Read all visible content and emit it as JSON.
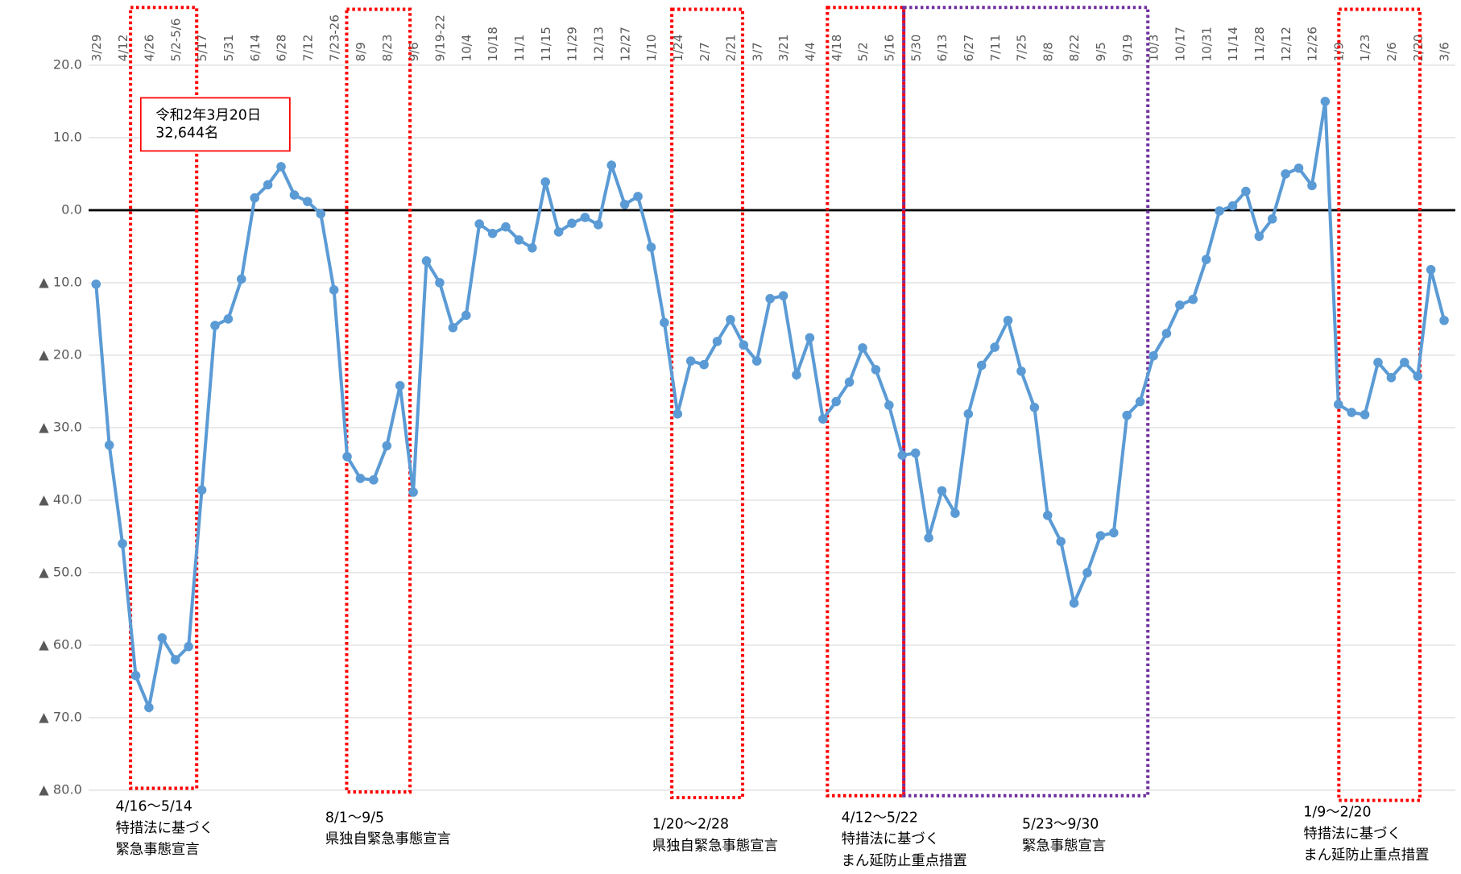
{
  "chart_data": {
    "type": "line",
    "categories": [
      "3/29",
      null,
      "4/12",
      null,
      "4/26",
      null,
      "5/2-5/6",
      null,
      "5/17",
      null,
      "5/31",
      null,
      "6/14",
      null,
      "6/28",
      null,
      "7/12",
      null,
      "7/23-26",
      null,
      "8/9",
      null,
      "8/23",
      null,
      "9/6",
      null,
      "9/19-22",
      null,
      "10/4",
      null,
      "10/18",
      null,
      "11/1",
      null,
      "11/15",
      null,
      "11/29",
      null,
      "12/13",
      null,
      "12/27",
      null,
      "1/10",
      null,
      "1/24",
      null,
      "2/7",
      null,
      "2/21",
      null,
      "3/7",
      null,
      "3/21",
      null,
      "4/4",
      null,
      "4/18",
      null,
      "5/2",
      null,
      "5/16",
      null,
      "5/30",
      null,
      "6/13",
      null,
      "6/27",
      null,
      "7/11",
      null,
      "7/25",
      null,
      "8/8",
      null,
      "8/22",
      null,
      "9/5",
      null,
      "9/19",
      null,
      "10/3",
      null,
      "10/17",
      null,
      "10/31",
      null,
      "11/14",
      null,
      "11/28",
      null,
      "12/12",
      null,
      "12/26",
      null,
      "1/9",
      null,
      "1/23",
      null,
      "2/6",
      null,
      "2/20",
      null,
      "3/6"
    ],
    "series": [
      {
        "color": "#5b9bd5",
        "values": [
          -10.2,
          -32.4,
          -46,
          -64.2,
          -68.6,
          -59,
          -62,
          -60.2,
          -38.6,
          -15.9,
          -15,
          -9.5,
          1.7,
          3.5,
          6,
          2.1,
          1.2,
          -0.5,
          -11,
          -34,
          -37,
          -37.2,
          -32.5,
          -24.2,
          -38.9,
          -7,
          -10,
          -16.2,
          -14.5,
          -1.9,
          -3.2,
          -2.3,
          -4.1,
          -5.2,
          3.9,
          -3,
          -1.8,
          -1,
          -2,
          6.2,
          0.8,
          1.9,
          -5.1,
          -15.5,
          -28.1,
          -20.8,
          -21.3,
          -18.1,
          -15.1,
          -18.6,
          -20.8,
          -12.2,
          -11.8,
          -22.7,
          -17.6,
          -28.8,
          -26.4,
          -23.7,
          -19,
          -22,
          -26.9,
          -33.8,
          -33.5,
          -45.2,
          -38.7,
          -41.8,
          -28.1,
          -21.4,
          -18.9,
          -15.2,
          -22.2,
          -27.2,
          -42.1,
          -45.7,
          -54.2,
          -50,
          -44.9,
          -44.5,
          -28.3,
          -26.4,
          -20.1,
          -17,
          -13.1,
          -12.3,
          -6.8,
          -0.1,
          0.6,
          2.6,
          -3.6,
          -1.2,
          5,
          5.8,
          3.4,
          15,
          -26.8,
          -27.9,
          -28.2,
          -21,
          -23.1,
          -21,
          -22.9,
          -8.2,
          -15.2
        ]
      }
    ],
    "ylim": [
      -80,
      20
    ],
    "yticks": [
      {
        "value": 20,
        "label": "20.0"
      },
      {
        "value": 10,
        "label": "10.0"
      },
      {
        "value": 0,
        "label": "0.0"
      },
      {
        "value": -10,
        "label": "▲ 10.0"
      },
      {
        "value": -20,
        "label": "▲ 20.0"
      },
      {
        "value": -30,
        "label": "▲ 30.0"
      },
      {
        "value": -40,
        "label": "▲ 40.0"
      },
      {
        "value": -50,
        "label": "▲ 50.0"
      },
      {
        "value": -60,
        "label": "▲ 60.0"
      },
      {
        "value": -70,
        "label": "▲ 70.0"
      },
      {
        "value": -80,
        "label": "▲ 80.0"
      }
    ],
    "grid": true,
    "callout": [
      "令和2年3月20日",
      "32,644名"
    ],
    "annotations": [
      [
        "4/16～5/14",
        "特措法に基づく",
        "緊急事態宣言"
      ],
      [
        "8/1～9/5",
        "県独自緊急事態宣言"
      ],
      [
        "1/20～2/28",
        "県独自緊急事態宣言"
      ],
      [
        "4/12～5/22",
        "特措法に基づく",
        "まん延防止重点措置"
      ],
      [
        "5/23～9/30",
        "緊急事態宣言"
      ],
      [
        "1/9～2/20",
        "特措法に基づく",
        "まん延防止重点措置"
      ]
    ]
  }
}
